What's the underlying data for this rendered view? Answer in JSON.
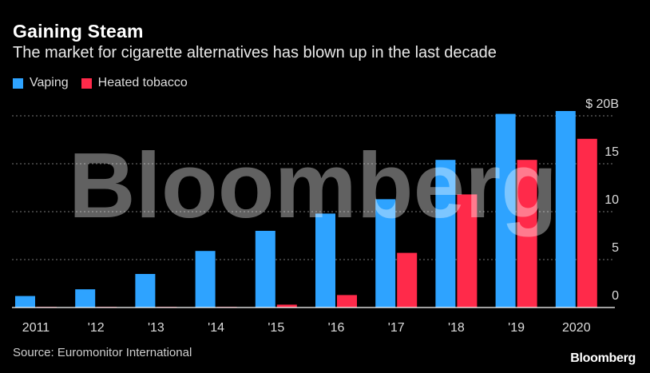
{
  "title": "Gaining Steam",
  "subtitle": "The market for cigarette alternatives has blown up in the last decade",
  "source": "Source: Euromonitor International",
  "brand": "Bloomberg",
  "watermark": "Bloomberg",
  "colors": {
    "vaping": "#2ea3ff",
    "heated": "#ff2a4a",
    "background": "#000000",
    "grid": "#777777"
  },
  "chart_data": {
    "type": "bar",
    "categories": [
      "2011",
      "'12",
      "'13",
      "'14",
      "'15",
      "'16",
      "'17",
      "'18",
      "'19",
      "2020"
    ],
    "series": [
      {
        "name": "Vaping",
        "values": [
          1.2,
          1.9,
          3.5,
          5.9,
          8.0,
          9.8,
          11.3,
          15.4,
          20.2,
          20.5
        ]
      },
      {
        "name": "Heated tobacco",
        "values": [
          0.05,
          0.05,
          0.05,
          0.05,
          0.3,
          1.3,
          5.7,
          11.8,
          15.4,
          17.6
        ]
      }
    ],
    "yticks": [
      0,
      5,
      10,
      15,
      20
    ],
    "ytick_labels": [
      "0",
      "5",
      "10",
      "15",
      "$ 20B"
    ],
    "ylim": [
      0,
      20
    ],
    "grid": true,
    "legend": "top-left",
    "xlabel": "",
    "ylabel": ""
  }
}
